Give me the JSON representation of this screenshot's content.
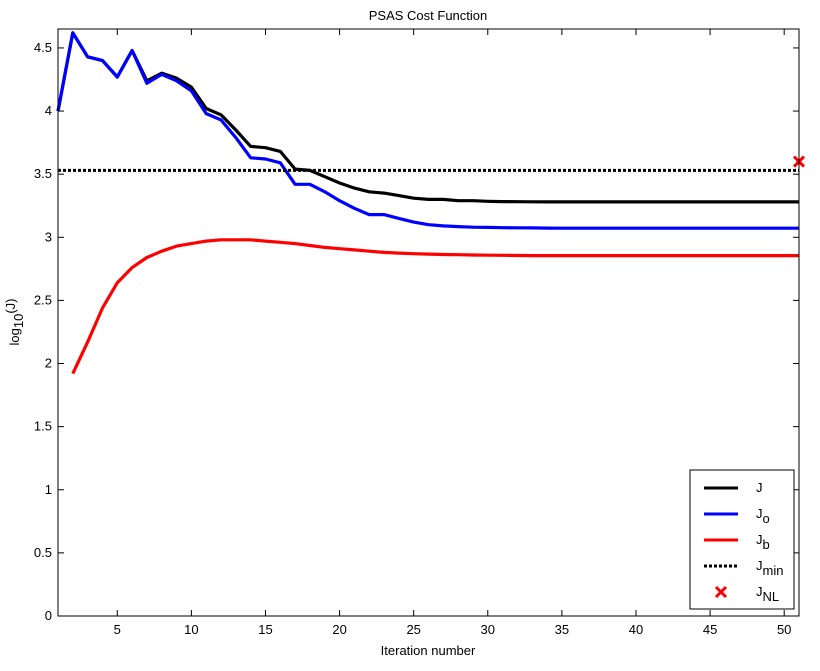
{
  "chart_data": {
    "type": "line",
    "title": "PSAS Cost Function",
    "xlabel": "Iteration number",
    "ylabel": {
      "base": "log",
      "sub": "10",
      "rest": "(J)"
    },
    "xlim": [
      1,
      51
    ],
    "ylim": [
      0,
      4.65
    ],
    "xticks": [
      5,
      10,
      15,
      20,
      25,
      30,
      35,
      40,
      45,
      50
    ],
    "yticks": [
      0,
      0.5,
      1,
      1.5,
      2,
      2.5,
      3,
      3.5,
      4,
      4.5
    ],
    "xtick_labels": [
      "5",
      "10",
      "15",
      "20",
      "25",
      "30",
      "35",
      "40",
      "45",
      "50"
    ],
    "ytick_labels": [
      "0",
      "0.5",
      "1",
      "1.5",
      "2",
      "2.5",
      "3",
      "3.5",
      "4",
      "4.5"
    ],
    "grid": false,
    "legend_position": "bottom-right",
    "series": [
      {
        "name": "J",
        "label_main": "J",
        "label_sub": "",
        "color": "#000000",
        "style": "solid",
        "x": [
          1,
          2,
          3,
          4,
          5,
          6,
          7,
          8,
          9,
          10,
          11,
          12,
          13,
          14,
          15,
          16,
          17,
          18,
          19,
          20,
          21,
          22,
          23,
          24,
          25,
          26,
          27,
          28,
          29,
          30,
          31,
          32,
          33,
          34,
          35,
          36,
          37,
          38,
          39,
          40,
          41,
          42,
          43,
          44,
          45,
          46,
          47,
          48,
          49,
          50,
          51
        ],
        "values": [
          4.0,
          4.62,
          4.43,
          4.4,
          4.27,
          4.48,
          4.24,
          4.3,
          4.26,
          4.19,
          4.02,
          3.97,
          3.85,
          3.72,
          3.71,
          3.68,
          3.54,
          3.53,
          3.48,
          3.43,
          3.39,
          3.36,
          3.35,
          3.33,
          3.31,
          3.3,
          3.3,
          3.29,
          3.29,
          3.285,
          3.283,
          3.282,
          3.281,
          3.28,
          3.28,
          3.28,
          3.28,
          3.28,
          3.28,
          3.28,
          3.28,
          3.28,
          3.28,
          3.28,
          3.28,
          3.28,
          3.28,
          3.28,
          3.28,
          3.28,
          3.28
        ]
      },
      {
        "name": "Jo",
        "label_main": "J",
        "label_sub": "o",
        "color": "#0000ff",
        "style": "solid",
        "x": [
          1,
          2,
          3,
          4,
          5,
          6,
          7,
          8,
          9,
          10,
          11,
          12,
          13,
          14,
          15,
          16,
          17,
          18,
          19,
          20,
          21,
          22,
          23,
          24,
          25,
          26,
          27,
          28,
          29,
          30,
          31,
          32,
          33,
          34,
          35,
          36,
          37,
          38,
          39,
          40,
          41,
          42,
          43,
          44,
          45,
          46,
          47,
          48,
          49,
          50,
          51
        ],
        "values": [
          4.0,
          4.62,
          4.43,
          4.4,
          4.27,
          4.48,
          4.22,
          4.29,
          4.24,
          4.16,
          3.98,
          3.93,
          3.79,
          3.63,
          3.62,
          3.59,
          3.42,
          3.42,
          3.36,
          3.29,
          3.23,
          3.18,
          3.18,
          3.15,
          3.12,
          3.1,
          3.09,
          3.085,
          3.08,
          3.078,
          3.076,
          3.075,
          3.074,
          3.073,
          3.072,
          3.072,
          3.072,
          3.072,
          3.072,
          3.072,
          3.072,
          3.072,
          3.072,
          3.072,
          3.072,
          3.072,
          3.072,
          3.072,
          3.072,
          3.072,
          3.072
        ]
      },
      {
        "name": "Jb",
        "label_main": "J",
        "label_sub": "b",
        "color": "#ff0000",
        "style": "solid",
        "x": [
          2,
          3,
          4,
          5,
          6,
          7,
          8,
          9,
          10,
          11,
          12,
          13,
          14,
          15,
          16,
          17,
          18,
          19,
          20,
          21,
          22,
          23,
          24,
          25,
          26,
          27,
          28,
          29,
          30,
          31,
          32,
          33,
          34,
          35,
          36,
          37,
          38,
          39,
          40,
          41,
          42,
          43,
          44,
          45,
          46,
          47,
          48,
          49,
          50,
          51
        ],
        "values": [
          1.92,
          2.17,
          2.44,
          2.64,
          2.76,
          2.84,
          2.89,
          2.93,
          2.95,
          2.97,
          2.98,
          2.98,
          2.98,
          2.97,
          2.96,
          2.95,
          2.935,
          2.92,
          2.91,
          2.9,
          2.89,
          2.88,
          2.875,
          2.87,
          2.867,
          2.864,
          2.862,
          2.86,
          2.858,
          2.857,
          2.856,
          2.855,
          2.855,
          2.855,
          2.855,
          2.855,
          2.855,
          2.855,
          2.855,
          2.855,
          2.855,
          2.855,
          2.855,
          2.855,
          2.855,
          2.855,
          2.855,
          2.855,
          2.855,
          2.855
        ]
      },
      {
        "name": "Jmin",
        "label_main": "J",
        "label_sub": "min",
        "color": "#000000",
        "style": "dotted",
        "x": [
          1,
          51
        ],
        "values": [
          3.53,
          3.53
        ]
      }
    ],
    "markers": [
      {
        "name": "JNL",
        "label_main": "J",
        "label_sub": "NL",
        "color": "#ff0000",
        "marker": "x",
        "x": 51,
        "y": 3.6
      }
    ]
  }
}
